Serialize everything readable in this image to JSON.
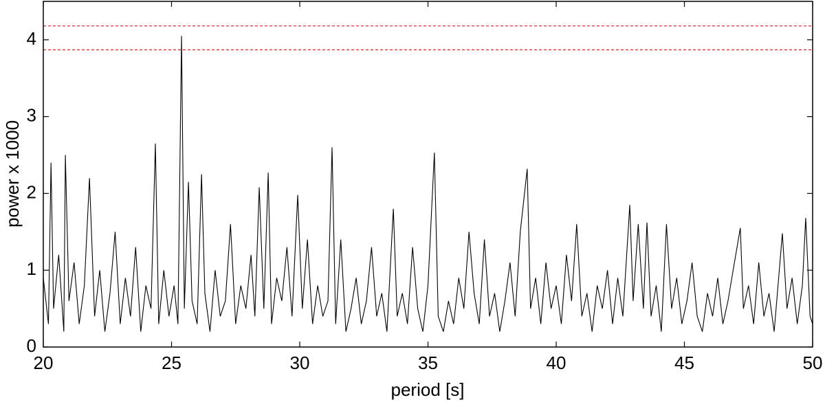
{
  "chart_data": {
    "type": "line",
    "xlabel": "period [s]",
    "ylabel": "power x 1000",
    "xlim": [
      20,
      50
    ],
    "ylim": [
      0,
      4.5
    ],
    "xticks": [
      20,
      25,
      30,
      35,
      40,
      45,
      50
    ],
    "yticks": [
      0,
      1,
      2,
      3,
      4
    ],
    "ref_lines": [
      {
        "value": 4.18,
        "color": "#e8302f"
      },
      {
        "value": 3.87,
        "color": "#e8302f"
      }
    ],
    "series": [
      {
        "color": "#000000",
        "x": [
          20.0,
          20.2,
          20.3,
          20.4,
          20.6,
          20.8,
          20.86,
          21.0,
          21.2,
          21.4,
          21.6,
          21.8,
          22.0,
          22.2,
          22.4,
          22.6,
          22.8,
          23.0,
          23.2,
          23.4,
          23.6,
          23.8,
          24.0,
          24.2,
          24.37,
          24.5,
          24.7,
          24.9,
          25.1,
          25.25,
          25.39,
          25.5,
          25.66,
          25.8,
          26.0,
          26.17,
          26.3,
          26.5,
          26.7,
          26.9,
          27.1,
          27.3,
          27.5,
          27.7,
          27.9,
          28.1,
          28.25,
          28.42,
          28.6,
          28.77,
          28.9,
          29.1,
          29.3,
          29.5,
          29.7,
          29.92,
          30.1,
          30.3,
          30.5,
          30.7,
          30.9,
          31.1,
          31.26,
          31.4,
          31.6,
          31.8,
          32.0,
          32.2,
          32.4,
          32.6,
          32.8,
          33.0,
          33.2,
          33.4,
          33.65,
          33.8,
          34.0,
          34.2,
          34.4,
          34.6,
          34.8,
          35.0,
          35.25,
          35.4,
          35.6,
          35.8,
          36.0,
          36.2,
          36.4,
          36.6,
          36.8,
          37.0,
          37.2,
          37.4,
          37.6,
          37.8,
          38.0,
          38.2,
          38.4,
          38.6,
          38.87,
          39.0,
          39.2,
          39.4,
          39.6,
          39.8,
          40.0,
          40.2,
          40.4,
          40.6,
          40.8,
          41.0,
          41.2,
          41.4,
          41.6,
          41.8,
          42.0,
          42.2,
          42.4,
          42.6,
          42.87,
          43.0,
          43.2,
          43.4,
          43.54,
          43.7,
          43.9,
          44.1,
          44.3,
          44.5,
          44.7,
          44.9,
          45.1,
          45.3,
          45.5,
          45.7,
          45.9,
          46.1,
          46.3,
          46.5,
          46.7,
          46.9,
          47.18,
          47.3,
          47.5,
          47.7,
          47.9,
          48.1,
          48.3,
          48.5,
          48.82,
          49.0,
          49.2,
          49.4,
          49.6,
          49.73,
          49.9,
          50.0
        ],
        "values": [
          0.9,
          0.3,
          2.4,
          0.5,
          1.2,
          0.2,
          2.5,
          0.6,
          1.1,
          0.3,
          0.8,
          2.2,
          0.4,
          1.0,
          0.2,
          0.7,
          1.5,
          0.3,
          0.9,
          0.4,
          1.3,
          0.2,
          0.8,
          0.5,
          2.65,
          0.3,
          1.0,
          0.4,
          0.8,
          0.3,
          4.05,
          0.5,
          2.15,
          0.6,
          0.3,
          2.25,
          0.7,
          0.2,
          1.0,
          0.4,
          0.6,
          1.6,
          0.3,
          0.8,
          0.5,
          1.2,
          0.4,
          2.08,
          0.5,
          2.27,
          0.3,
          0.9,
          0.6,
          1.3,
          0.4,
          1.98,
          0.5,
          1.4,
          0.3,
          0.8,
          0.4,
          0.6,
          2.6,
          0.3,
          1.4,
          0.2,
          0.5,
          0.9,
          0.3,
          0.6,
          1.3,
          0.4,
          0.7,
          0.2,
          1.8,
          0.4,
          0.7,
          0.3,
          1.3,
          0.5,
          0.2,
          0.8,
          2.53,
          0.4,
          0.2,
          0.6,
          0.3,
          0.9,
          0.5,
          1.5,
          0.7,
          0.3,
          1.4,
          0.4,
          0.7,
          0.2,
          0.6,
          1.1,
          0.4,
          1.5,
          2.32,
          0.5,
          0.9,
          0.3,
          1.1,
          0.5,
          0.8,
          0.3,
          1.2,
          0.6,
          1.6,
          0.4,
          0.7,
          0.2,
          0.8,
          0.5,
          1.0,
          0.3,
          0.9,
          0.4,
          1.85,
          0.6,
          1.6,
          0.5,
          1.62,
          0.4,
          0.8,
          0.2,
          1.6,
          0.5,
          0.9,
          0.3,
          0.6,
          1.1,
          0.4,
          0.2,
          0.7,
          0.4,
          0.9,
          0.3,
          0.6,
          1.0,
          1.55,
          0.5,
          0.8,
          0.3,
          1.1,
          0.4,
          0.7,
          0.2,
          1.48,
          0.5,
          0.9,
          0.3,
          0.8,
          1.68,
          0.4,
          0.3
        ]
      }
    ]
  }
}
